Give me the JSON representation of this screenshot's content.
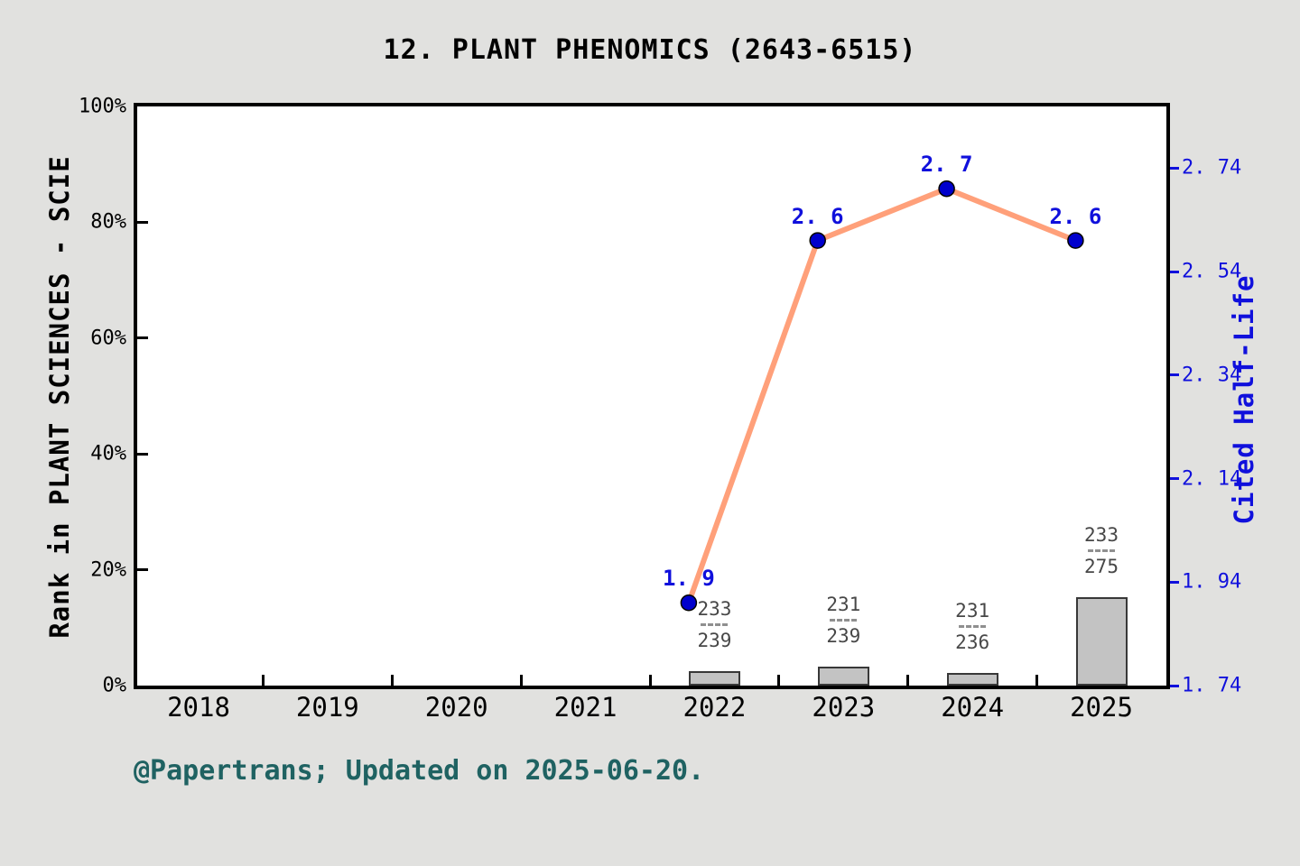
{
  "window": {
    "title": "12.  PLANT PHENOMICS (2643-6515)"
  },
  "footer": {
    "text": "@Papertrans; Updated on 2025-06-20."
  },
  "axes": {
    "left": {
      "label": "Rank in PLANT SCIENCES - SCIE",
      "tick_labels": [
        "0%",
        "20%",
        "40%",
        "60%",
        "80%",
        "100%"
      ],
      "tick_values": [
        0,
        20,
        40,
        60,
        80,
        100
      ],
      "range": [
        0,
        100
      ]
    },
    "right": {
      "label": "Cited Half-Life",
      "tick_labels": [
        "1. 74",
        "1. 94",
        "2. 14",
        "2. 34",
        "2. 54",
        "2. 74"
      ],
      "tick_values": [
        1.74,
        1.94,
        2.14,
        2.34,
        2.54,
        2.74
      ],
      "range": [
        1.74,
        2.86
      ]
    },
    "x": {
      "tick_labels": [
        "2018",
        "2019",
        "2020",
        "2021",
        "2022",
        "2023",
        "2024",
        "2025"
      ]
    }
  },
  "chart_data": {
    "type": "line+bar",
    "title": "12.  PLANT PHENOMICS (2643-6515)",
    "x_categories": [
      2018,
      2019,
      2020,
      2021,
      2022,
      2023,
      2024,
      2025
    ],
    "left_ylabel": "Rank in PLANT SCIENCES - SCIE",
    "right_ylabel": "Cited Half-Life",
    "left_ylim": [
      0,
      100
    ],
    "right_ylim": [
      1.74,
      2.86
    ],
    "grid": false,
    "legend": false,
    "series": [
      {
        "name": "Cited Half-Life",
        "type": "line",
        "y_axis": "right",
        "points": [
          {
            "year": 2022,
            "value": 1.9,
            "label": "1. 9"
          },
          {
            "year": 2023,
            "value": 2.6,
            "label": "2. 6"
          },
          {
            "year": 2024,
            "value": 2.7,
            "label": "2. 7"
          },
          {
            "year": 2025,
            "value": 2.6,
            "label": "2. 6"
          }
        ]
      },
      {
        "name": "Rank in PLANT SCIENCES - SCIE",
        "type": "bar",
        "y_axis": "left",
        "bar_height_rule": "percent = (1 - rank/total) * 100",
        "points": [
          {
            "year": 2022,
            "rank": 233,
            "total": 239,
            "numerator": "233",
            "denominator": "239",
            "percent": 2.5
          },
          {
            "year": 2023,
            "rank": 231,
            "total": 239,
            "numerator": "231",
            "denominator": "239",
            "percent": 3.3
          },
          {
            "year": 2024,
            "rank": 231,
            "total": 236,
            "numerator": "231",
            "denominator": "236",
            "percent": 2.1
          },
          {
            "year": 2025,
            "rank": 233,
            "total": 275,
            "numerator": "233",
            "denominator": "275",
            "percent": 15.3
          }
        ]
      }
    ]
  },
  "colors": {
    "background": "#e1e1df",
    "plot_background": "#ffffff",
    "frame": "#000000",
    "line": "#ffa07a",
    "marker_fill": "#0000cd",
    "marker_edge": "#000000",
    "blue_text": "#1010dc",
    "bar_fill": "#c3c3c3",
    "bar_edge": "#383838",
    "fraction_text": "#474747",
    "fraction_dash": "#8f8f8f",
    "title_text": "#000000",
    "footer_text": "#1f6262"
  }
}
